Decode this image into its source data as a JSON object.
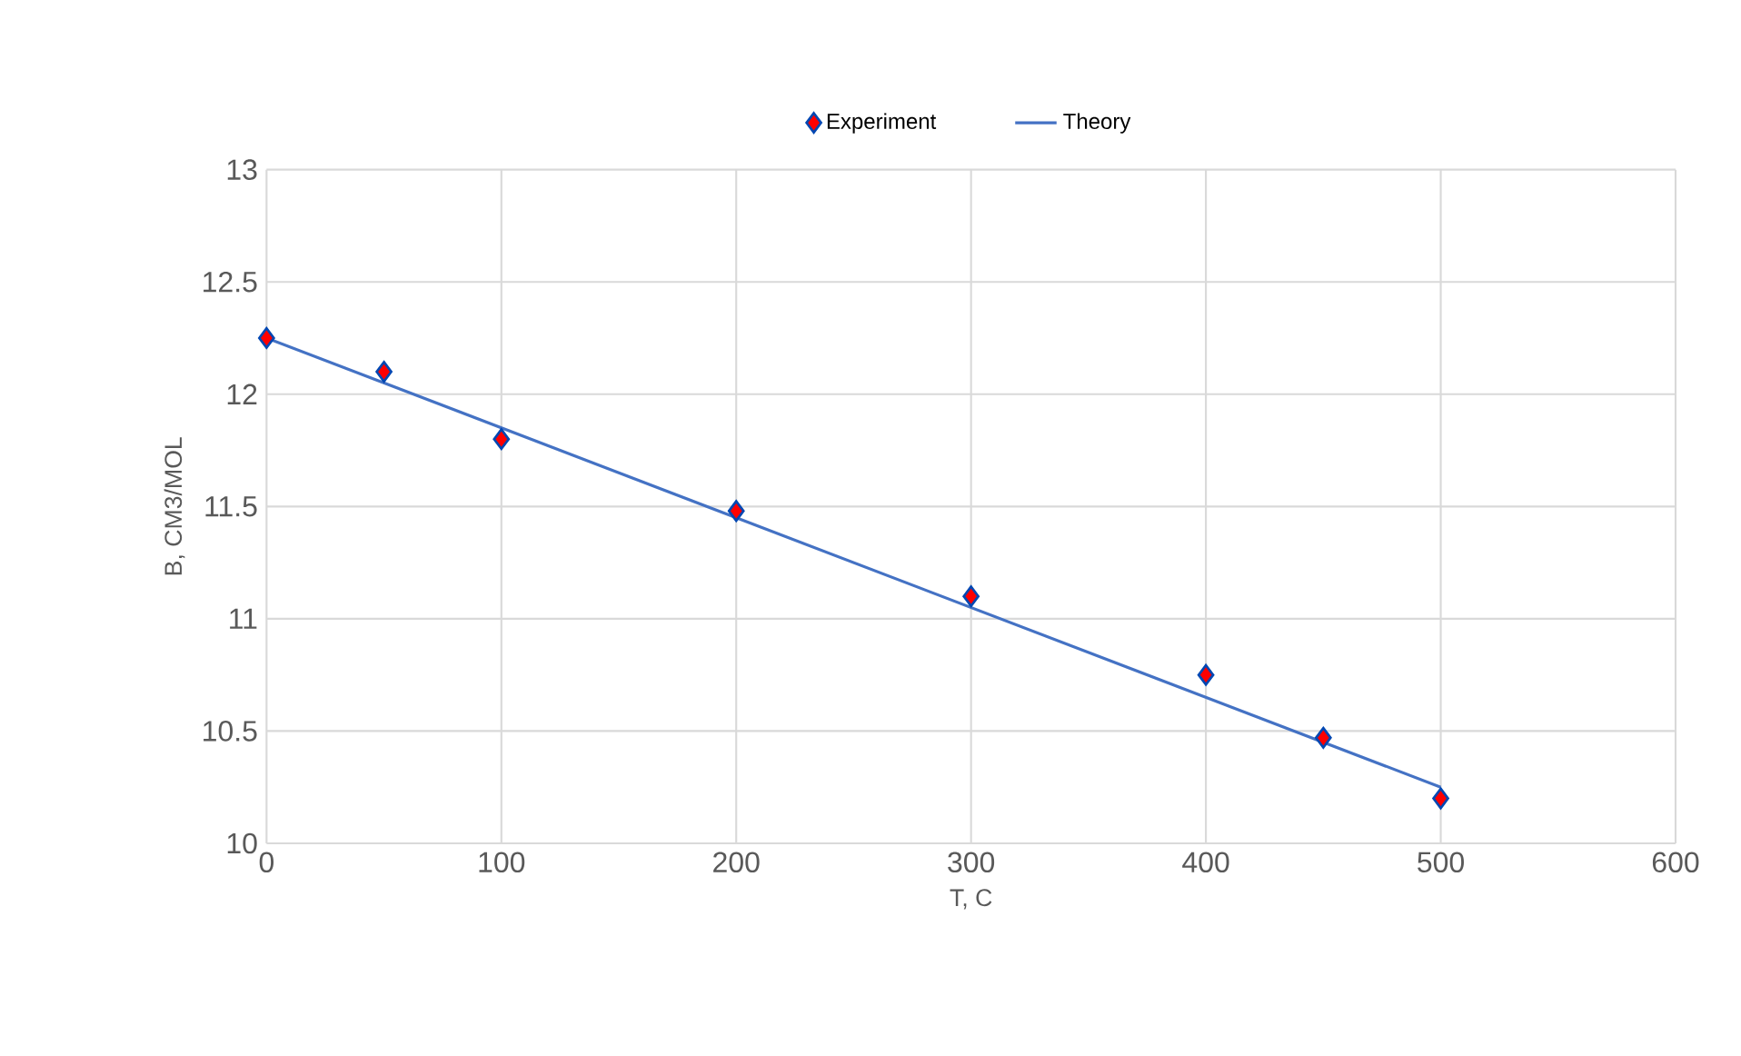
{
  "chart_data": {
    "type": "scatter",
    "xlabel": "T, C",
    "ylabel": "B, CM3/MOL",
    "xlim": [
      0,
      600
    ],
    "xticks": [
      0,
      100,
      200,
      300,
      400,
      500,
      600
    ],
    "ylim": [
      10,
      13
    ],
    "yticks": [
      10,
      10.5,
      11,
      11.5,
      12,
      12.5,
      13
    ],
    "grid": true,
    "legend": "top",
    "series": [
      {
        "name": "Experiment",
        "marker": "diamond",
        "color": "#ff0000",
        "x": [
          0,
          50,
          100,
          200,
          300,
          400,
          450,
          500
        ],
        "values": [
          12.25,
          12.1,
          11.8,
          11.48,
          11.1,
          10.75,
          10.47,
          10.2
        ]
      },
      {
        "name": "Theory",
        "type": "line",
        "marker": "none",
        "color": "#4472c4",
        "x": [
          0,
          500
        ],
        "values": [
          12.25,
          10.25
        ]
      }
    ]
  }
}
